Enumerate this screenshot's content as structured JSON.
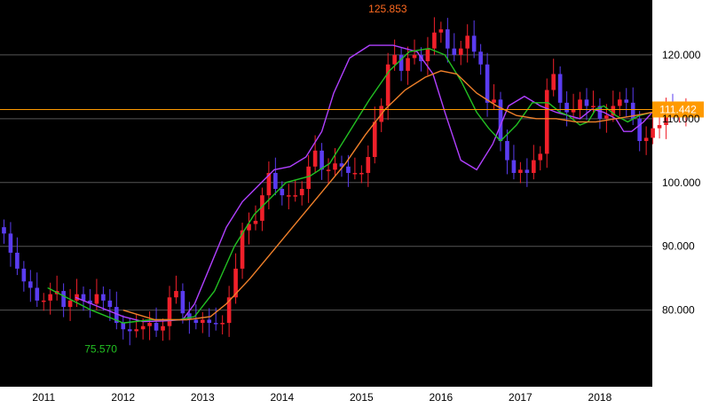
{
  "chart_data": {
    "type": "candlestick",
    "title": "",
    "xlabel": "",
    "ylabel": "",
    "ylim": [
      68,
      128.6
    ],
    "xlim": [
      2010.45,
      2018.66
    ],
    "y_ticks": [
      "120.000",
      "110.000",
      "100.000",
      "90.000",
      "80.000"
    ],
    "y_tick_values": [
      120,
      110,
      100,
      90,
      80
    ],
    "x_ticks": [
      "2011",
      "2012",
      "2013",
      "2014",
      "2015",
      "2016",
      "2017",
      "2018"
    ],
    "x_tick_values": [
      2011,
      2012,
      2013,
      2014,
      2015,
      2016,
      2017,
      2018
    ],
    "grid": true,
    "colors": {
      "background": "#000000",
      "axis_panel": "#ffffff",
      "grid": "#555555",
      "up": "#f0202a",
      "down": "#5a3cf0",
      "ma_short": "#b040ff",
      "ma_mid": "#22c022",
      "ma_long": "#f0802a",
      "current_line": "#ff9a00",
      "current_label_bg": "#ff9a00",
      "high_label": "#ff6a20",
      "low_label": "#22c022"
    },
    "annotations": {
      "high": {
        "label": "125.853",
        "x": 2015.33,
        "y": 125.853
      },
      "low": {
        "label": "75.570",
        "x": 2011.83,
        "y": 75.57
      }
    },
    "current_price": {
      "label": "111.442",
      "value": 111.442
    },
    "candles_monthly": {
      "start": 2010.5,
      "step": 0.0833333,
      "closes": [
        92.0,
        89.0,
        86.5,
        84.5,
        83.5,
        81.5,
        81.5,
        82.5,
        83.0,
        80.5,
        81.5,
        82.5,
        81.5,
        81.0,
        82.5,
        81.5,
        80.5,
        78.0,
        77.0,
        76.7,
        77.0,
        77.5,
        78.0,
        76.8,
        77.5,
        82.0,
        83.0,
        79.5,
        78.5,
        78.0,
        78.5,
        78.0,
        77.8,
        78.0,
        82.0,
        86.5,
        92.5,
        93.5,
        94.0,
        98.0,
        101.5,
        99.0,
        98.0,
        98.0,
        98.0,
        99.0,
        102.5,
        105.0,
        102.0,
        102.0,
        103.0,
        102.5,
        101.5,
        101.5,
        101.5,
        104.0,
        109.5,
        112.0,
        118.5,
        120.0,
        117.5,
        119.5,
        120.0,
        119.0,
        121.0,
        123.5,
        124.0,
        121.0,
        120.0,
        121.0,
        123.0,
        120.5,
        118.5,
        112.5,
        113.0,
        106.5,
        103.5,
        101.5,
        102.0,
        101.5,
        103.5,
        104.5,
        114.5,
        117.0,
        112.5,
        111.0,
        111.5,
        113.0,
        112.0,
        112.0,
        110.0,
        110.5,
        112.0,
        113.0,
        112.5,
        110.0,
        106.5,
        107.0,
        108.5,
        109.0,
        111.5,
        111.0,
        111.0,
        111.4
      ],
      "opens": [
        93.0,
        92.0,
        89.0,
        86.5,
        84.5,
        83.5,
        81.5,
        81.5,
        82.5,
        83.0,
        80.5,
        81.5,
        82.5,
        81.5,
        81.0,
        82.5,
        81.5,
        80.5,
        78.0,
        77.0,
        76.7,
        77.0,
        77.5,
        78.0,
        76.8,
        77.5,
        82.0,
        83.0,
        79.5,
        78.5,
        78.0,
        78.5,
        78.0,
        77.8,
        78.0,
        82.0,
        86.5,
        92.5,
        93.5,
        94.0,
        98.0,
        101.5,
        99.0,
        98.0,
        98.0,
        98.0,
        99.0,
        102.5,
        105.0,
        102.0,
        102.0,
        103.0,
        102.5,
        101.5,
        101.5,
        101.5,
        104.0,
        109.5,
        112.0,
        118.5,
        120.0,
        117.5,
        119.5,
        120.0,
        119.0,
        121.0,
        123.5,
        124.0,
        121.0,
        120.0,
        121.0,
        123.0,
        120.5,
        118.5,
        112.5,
        113.0,
        106.5,
        103.5,
        101.5,
        102.0,
        101.5,
        103.5,
        104.5,
        114.5,
        117.0,
        112.5,
        111.0,
        111.5,
        113.0,
        112.0,
        112.0,
        110.0,
        110.5,
        112.0,
        113.0,
        112.5,
        110.0,
        106.5,
        107.0,
        108.5,
        109.0,
        111.5,
        111.0,
        111.0
      ]
    },
    "moving_averages": [
      {
        "values": [
          82.0,
          80.5,
          79.0,
          78.2,
          78.3,
          78.5,
          81.0,
          87.0,
          93.0,
          97.0,
          99.5,
          102.0,
          102.5,
          104.0,
          108.0,
          114.0,
          119.5,
          121.5,
          121.5,
          120.5,
          117.0,
          111.0,
          103.5,
          102.0,
          106.0,
          112.0,
          113.5,
          112.0,
          111.0,
          110.5,
          110.0,
          111.5,
          111.0,
          110.0,
          108.0,
          108.0,
          109.5,
          111.0
        ],
        "x": [
          2011.4,
          2011.7,
          2012.0,
          2012.25,
          2012.5,
          2012.75,
          2012.9,
          2013.1,
          2013.3,
          2013.5,
          2013.7,
          2013.9,
          2014.1,
          2014.3,
          2014.5,
          2014.65,
          2014.85,
          2015.1,
          2015.4,
          2015.7,
          2015.9,
          2016.05,
          2016.25,
          2016.45,
          2016.65,
          2016.85,
          2017.05,
          2017.25,
          2017.45,
          2017.6,
          2017.75,
          2017.9,
          2018.05,
          2018.2,
          2018.3,
          2018.4,
          2018.55,
          2018.66
        ]
      },
      {
        "values": [
          83.5,
          80.0,
          78.0,
          78.5,
          78.5,
          79.0,
          83.0,
          90.0,
          95.0,
          97.5,
          100.0,
          101.0,
          103.0,
          108.0,
          113.0,
          117.5,
          120.5,
          121.0,
          120.0,
          116.0,
          111.0,
          108.5,
          106.5,
          109.0,
          112.5,
          112.5,
          111.0,
          110.5,
          109.0,
          109.5,
          111.5,
          112.0,
          110.5,
          109.5,
          110.5,
          111.0
        ],
        "x": [
          2011.05,
          2011.6,
          2012.0,
          2012.35,
          2012.7,
          2012.9,
          2013.15,
          2013.4,
          2013.65,
          2013.85,
          2014.05,
          2014.35,
          2014.6,
          2014.85,
          2015.1,
          2015.35,
          2015.6,
          2015.85,
          2016.05,
          2016.25,
          2016.45,
          2016.6,
          2016.75,
          2016.95,
          2017.15,
          2017.35,
          2017.5,
          2017.6,
          2017.75,
          2017.85,
          2017.95,
          2018.05,
          2018.2,
          2018.35,
          2018.5,
          2018.66
        ]
      },
      {
        "values": [
          80.0,
          78.5,
          78.5,
          79.0,
          81.0,
          85.0,
          89.5,
          94.0,
          98.5,
          103.0,
          107.5,
          111.5,
          114.5,
          116.5,
          117.5,
          117.0,
          114.0,
          112.0,
          110.5,
          110.0,
          110.0,
          109.5,
          109.5,
          110.0,
          110.5,
          111.0
        ],
        "x": [
          2012.0,
          2012.4,
          2012.8,
          2013.1,
          2013.3,
          2013.6,
          2013.9,
          2014.2,
          2014.5,
          2014.8,
          2015.05,
          2015.3,
          2015.55,
          2015.8,
          2016.0,
          2016.2,
          2016.45,
          2016.7,
          2016.95,
          2017.2,
          2017.45,
          2017.7,
          2017.95,
          2018.2,
          2018.45,
          2018.66
        ]
      }
    ]
  }
}
